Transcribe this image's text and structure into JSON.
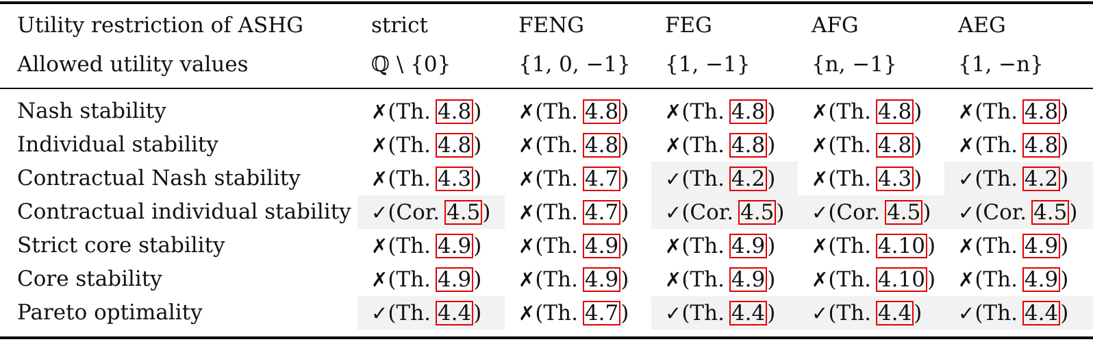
{
  "header": {
    "row1": {
      "label": "Utility restriction of ASHG",
      "values": [
        "strict",
        "FENG",
        "FEG",
        "AFG",
        "AEG"
      ]
    },
    "row2": {
      "label": "Allowed utility values",
      "values": [
        "ℚ \\ {0}",
        "{1, 0, −1}",
        "{1, −1}",
        "{n, −1}",
        "{1, −n}"
      ]
    }
  },
  "rows": [
    {
      "label": "Nash stability",
      "cells": [
        {
          "mark": "✗",
          "kind": "Th.",
          "ref": "4.8",
          "shaded": false
        },
        {
          "mark": "✗",
          "kind": "Th.",
          "ref": "4.8",
          "shaded": false
        },
        {
          "mark": "✗",
          "kind": "Th.",
          "ref": "4.8",
          "shaded": false
        },
        {
          "mark": "✗",
          "kind": "Th.",
          "ref": "4.8",
          "shaded": false
        },
        {
          "mark": "✗",
          "kind": "Th.",
          "ref": "4.8",
          "shaded": false
        }
      ]
    },
    {
      "label": "Individual stability",
      "cells": [
        {
          "mark": "✗",
          "kind": "Th.",
          "ref": "4.8",
          "shaded": false
        },
        {
          "mark": "✗",
          "kind": "Th.",
          "ref": "4.8",
          "shaded": false
        },
        {
          "mark": "✗",
          "kind": "Th.",
          "ref": "4.8",
          "shaded": false
        },
        {
          "mark": "✗",
          "kind": "Th.",
          "ref": "4.8",
          "shaded": false
        },
        {
          "mark": "✗",
          "kind": "Th.",
          "ref": "4.8",
          "shaded": false
        }
      ]
    },
    {
      "label": "Contractual Nash stability",
      "cells": [
        {
          "mark": "✗",
          "kind": "Th.",
          "ref": "4.3",
          "shaded": false
        },
        {
          "mark": "✗",
          "kind": "Th.",
          "ref": "4.7",
          "shaded": false
        },
        {
          "mark": "✓",
          "kind": "Th.",
          "ref": "4.2",
          "shaded": true
        },
        {
          "mark": "✗",
          "kind": "Th.",
          "ref": "4.3",
          "shaded": false
        },
        {
          "mark": "✓",
          "kind": "Th.",
          "ref": "4.2",
          "shaded": true
        }
      ]
    },
    {
      "label": "Contractual individual stability",
      "cells": [
        {
          "mark": "✓",
          "kind": "Cor.",
          "ref": "4.5",
          "shaded": true
        },
        {
          "mark": "✗",
          "kind": "Th.",
          "ref": "4.7",
          "shaded": false
        },
        {
          "mark": "✓",
          "kind": "Cor.",
          "ref": "4.5",
          "shaded": true
        },
        {
          "mark": "✓",
          "kind": "Cor.",
          "ref": "4.5",
          "shaded": true
        },
        {
          "mark": "✓",
          "kind": "Cor.",
          "ref": "4.5",
          "shaded": true
        }
      ]
    },
    {
      "label": "Strict core stability",
      "cells": [
        {
          "mark": "✗",
          "kind": "Th.",
          "ref": "4.9",
          "shaded": false
        },
        {
          "mark": "✗",
          "kind": "Th.",
          "ref": "4.9",
          "shaded": false
        },
        {
          "mark": "✗",
          "kind": "Th.",
          "ref": "4.9",
          "shaded": false
        },
        {
          "mark": "✗",
          "kind": "Th.",
          "ref": "4.10",
          "shaded": false
        },
        {
          "mark": "✗",
          "kind": "Th.",
          "ref": "4.9",
          "shaded": false
        }
      ]
    },
    {
      "label": "Core stability",
      "cells": [
        {
          "mark": "✗",
          "kind": "Th.",
          "ref": "4.9",
          "shaded": false
        },
        {
          "mark": "✗",
          "kind": "Th.",
          "ref": "4.9",
          "shaded": false
        },
        {
          "mark": "✗",
          "kind": "Th.",
          "ref": "4.9",
          "shaded": false
        },
        {
          "mark": "✗",
          "kind": "Th.",
          "ref": "4.10",
          "shaded": false
        },
        {
          "mark": "✗",
          "kind": "Th.",
          "ref": "4.9",
          "shaded": false
        }
      ]
    },
    {
      "label": "Pareto optimality",
      "cells": [
        {
          "mark": "✓",
          "kind": "Th.",
          "ref": "4.4",
          "shaded": true
        },
        {
          "mark": "✗",
          "kind": "Th.",
          "ref": "4.7",
          "shaded": false
        },
        {
          "mark": "✓",
          "kind": "Th.",
          "ref": "4.4",
          "shaded": true
        },
        {
          "mark": "✓",
          "kind": "Th.",
          "ref": "4.4",
          "shaded": true
        },
        {
          "mark": "✓",
          "kind": "Th.",
          "ref": "4.4",
          "shaded": true
        }
      ]
    }
  ],
  "colors": {
    "ref_border": "#e00000",
    "shade": "#f2f2f2",
    "rule": "#000000"
  }
}
